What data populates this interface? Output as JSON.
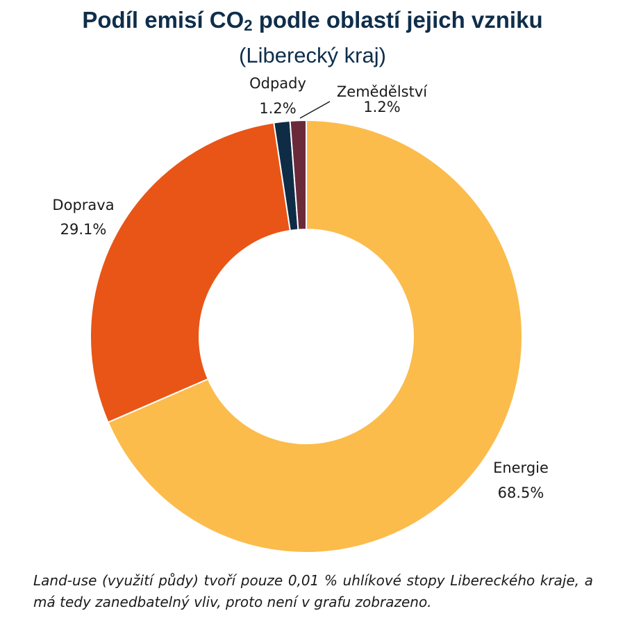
{
  "chart_data": {
    "type": "pie",
    "title_parts": [
      "Podíl emisí CO",
      "2",
      " podle oblastí jejich vzniku"
    ],
    "subtitle": "(Liberecký kraj)",
    "slices": [
      {
        "name": "Energie",
        "value": 68.5,
        "label": "68.5%",
        "color": "#fbbc4c"
      },
      {
        "name": "Doprava",
        "value": 29.1,
        "label": "29.1%",
        "color": "#e85516"
      },
      {
        "name": "Odpady",
        "value": 1.2,
        "label": "1.2%",
        "color": "#0e2c45"
      },
      {
        "name": "Zemědělství",
        "value": 1.2,
        "label": "1.2%",
        "color": "#6b2a3a"
      }
    ],
    "donut": true,
    "legend": "none",
    "note": "Land-use (využití půdy) tvoří pouze 0,01 % uhlíkové stopy Libereckého kraje, a má tedy zanedbatelný vliv, proto není v grafu zobrazeno."
  }
}
